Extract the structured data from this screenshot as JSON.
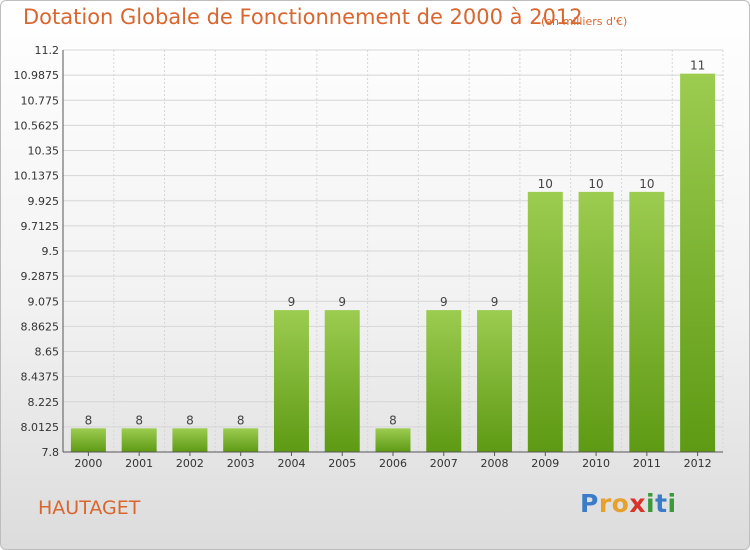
{
  "title": "Dotation Globale de Fonctionnement de 2000 à 2012",
  "subtitle": "(en milliers d'€)",
  "commune": "HAUTAGET",
  "brand": {
    "letters": [
      "P",
      "r",
      "o",
      "x",
      "i",
      "t",
      "i"
    ],
    "colors": [
      "#3a7cc7",
      "#e8a02c",
      "#e8a02c",
      "#d9342b",
      "#3a9a3a",
      "#3a7cc7",
      "#3a9a3a"
    ]
  },
  "colors": {
    "title": "#d9662f",
    "bar_top": "#9ccc50",
    "bar_bottom": "#5e9a14",
    "grid": "#d6d6d6"
  },
  "chart_data": {
    "type": "bar",
    "title": "Dotation Globale de Fonctionnement de 2000 à 2012",
    "subtitle": "(en milliers d'€)",
    "categories": [
      "2000",
      "2001",
      "2002",
      "2003",
      "2004",
      "2005",
      "2006",
      "2007",
      "2008",
      "2009",
      "2010",
      "2011",
      "2012"
    ],
    "values": [
      8,
      8,
      8,
      8,
      9,
      9,
      8,
      9,
      9,
      10,
      10,
      10,
      11
    ],
    "data_labels": [
      "8",
      "8",
      "8",
      "8",
      "9",
      "9",
      "8",
      "9",
      "9",
      "10",
      "10",
      "10",
      "11"
    ],
    "ylim": [
      7.8,
      11.2
    ],
    "yticks": [
      "7.8",
      "8.0125",
      "8.225",
      "8.4375",
      "8.65",
      "8.8625",
      "9.075",
      "9.2875",
      "9.5",
      "9.7125",
      "9.925",
      "10.1375",
      "10.35",
      "10.5625",
      "10.775",
      "10.9875",
      "11.2"
    ],
    "xlabel": "",
    "ylabel": "",
    "grid": true,
    "legend": "none"
  }
}
